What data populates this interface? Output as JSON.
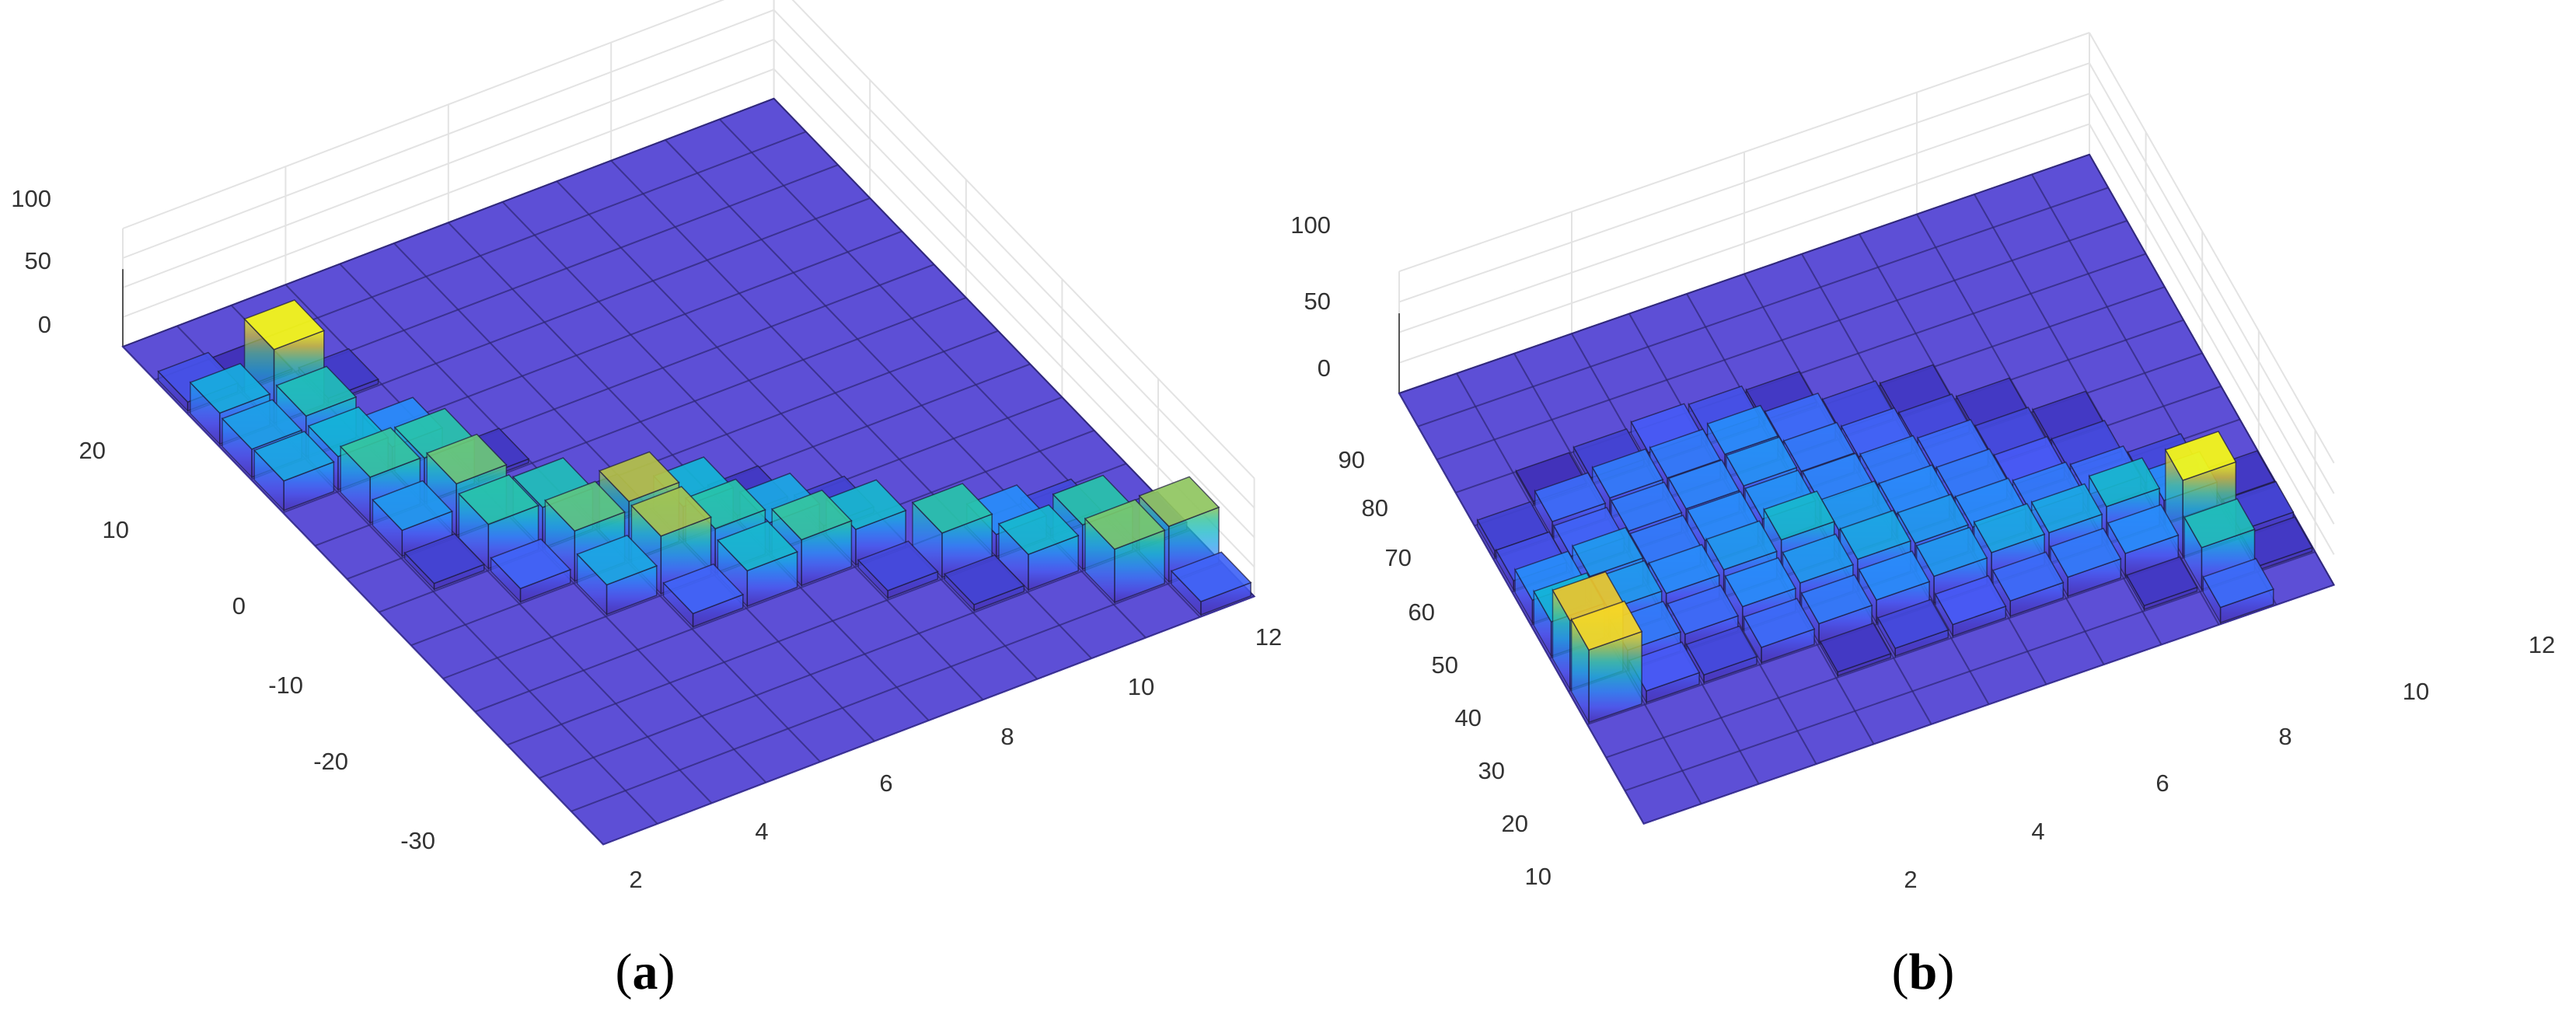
{
  "chart_data": [
    {
      "type": "bar3d",
      "panel_label": "a",
      "x": [
        1,
        2,
        3,
        4,
        5,
        6,
        7,
        8,
        9,
        10,
        11,
        12
      ],
      "x_tick_labels": [
        "2",
        "4",
        "6",
        "8",
        "10",
        "12"
      ],
      "y_tick_labels": [
        "-30",
        "-20",
        "-10",
        "0",
        "10",
        "20"
      ],
      "z_tick_labels": [
        "0",
        "50",
        "100"
      ],
      "z_range": [
        0,
        100
      ],
      "colormap": "parula",
      "base_color": "#5c4fd8",
      "values": [
        [
          0,
          0,
          0,
          0,
          0,
          0,
          0,
          0,
          0,
          0,
          0,
          0
        ],
        [
          12,
          3,
          0,
          0,
          0,
          0,
          0,
          0,
          0,
          0,
          0,
          0
        ],
        [
          42,
          100,
          6,
          0,
          0,
          0,
          0,
          0,
          0,
          0,
          0,
          0
        ],
        [
          38,
          55,
          0,
          0,
          0,
          0,
          0,
          0,
          0,
          0,
          0,
          0
        ],
        [
          40,
          45,
          30,
          0,
          0,
          0,
          0,
          0,
          0,
          0,
          0,
          0
        ],
        [
          0,
          62,
          60,
          5,
          0,
          0,
          0,
          0,
          0,
          0,
          0,
          0
        ],
        [
          0,
          35,
          70,
          0,
          0,
          0,
          0,
          0,
          0,
          0,
          0,
          0
        ],
        [
          0,
          8,
          60,
          55,
          5,
          0,
          0,
          0,
          0,
          0,
          0,
          0
        ],
        [
          0,
          0,
          18,
          68,
          80,
          45,
          5,
          0,
          0,
          0,
          0,
          0
        ],
        [
          0,
          0,
          0,
          40,
          78,
          60,
          40,
          8,
          0,
          0,
          0,
          0
        ],
        [
          0,
          0,
          0,
          0,
          18,
          48,
          62,
          48,
          0,
          0,
          0,
          0
        ],
        [
          0,
          0,
          0,
          0,
          0,
          0,
          0,
          10,
          60,
          30,
          10,
          0
        ],
        [
          0,
          0,
          0,
          0,
          0,
          0,
          0,
          0,
          8,
          48,
          60,
          10
        ],
        [
          0,
          0,
          0,
          0,
          0,
          0,
          0,
          0,
          0,
          0,
          72,
          75
        ],
        [
          0,
          0,
          0,
          0,
          0,
          0,
          0,
          0,
          0,
          0,
          0,
          18
        ]
      ]
    },
    {
      "type": "bar3d",
      "panel_label": "b",
      "x": [
        1,
        2,
        3,
        4,
        5,
        6,
        7,
        8,
        9,
        10,
        11,
        12
      ],
      "x_tick_labels": [
        "2",
        "4",
        "6",
        "8",
        "10",
        "12"
      ],
      "y_tick_labels": [
        "10",
        "20",
        "30",
        "40",
        "50",
        "60",
        "70",
        "80",
        "90"
      ],
      "z_tick_labels": [
        "0",
        "50",
        "100"
      ],
      "z_range": [
        0,
        100
      ],
      "colormap": "parula",
      "base_color": "#5c4fd8",
      "values": [
        [
          0,
          0,
          0,
          0,
          0,
          0,
          0,
          0,
          0,
          0,
          0,
          0
        ],
        [
          0,
          0,
          0,
          0,
          0,
          0,
          0,
          0,
          0,
          0,
          0,
          0
        ],
        [
          0,
          0,
          0,
          0,
          0,
          0,
          0,
          0,
          0,
          0,
          0,
          0
        ],
        [
          0,
          3,
          8,
          15,
          12,
          5,
          0,
          0,
          0,
          0,
          0,
          0
        ],
        [
          8,
          20,
          25,
          25,
          30,
          20,
          10,
          5,
          0,
          0,
          0,
          0
        ],
        [
          12,
          18,
          25,
          28,
          32,
          25,
          18,
          10,
          5,
          0,
          0,
          0
        ],
        [
          30,
          35,
          25,
          30,
          32,
          28,
          25,
          20,
          10,
          5,
          0,
          0
        ],
        [
          45,
          35,
          30,
          35,
          48,
          35,
          30,
          25,
          15,
          10,
          0,
          0
        ],
        [
          90,
          25,
          20,
          30,
          35,
          40,
          35,
          30,
          25,
          20,
          10,
          0
        ],
        [
          95,
          15,
          10,
          20,
          25,
          30,
          35,
          40,
          40,
          48,
          30,
          5
        ],
        [
          0,
          0,
          0,
          0,
          5,
          10,
          15,
          20,
          25,
          30,
          100,
          8
        ],
        [
          0,
          0,
          0,
          0,
          0,
          0,
          0,
          0,
          0,
          5,
          55,
          5
        ],
        [
          0,
          0,
          0,
          0,
          0,
          0,
          0,
          0,
          0,
          0,
          20,
          0
        ]
      ]
    }
  ]
}
